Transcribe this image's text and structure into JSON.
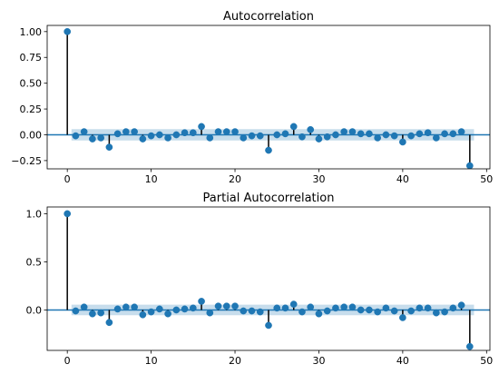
{
  "chart_data": [
    {
      "type": "stem",
      "title": "Autocorrelation",
      "xlabel": "",
      "ylabel": "",
      "xlim": [
        -2.4,
        50.4
      ],
      "ylim": [
        -0.33,
        1.06
      ],
      "x_ticks": [
        0,
        10,
        20,
        30,
        40,
        50
      ],
      "x_tick_labels": [
        "0",
        "10",
        "20",
        "30",
        "40",
        "50"
      ],
      "y_ticks": [
        -0.25,
        0.0,
        0.25,
        0.5,
        0.75,
        1.0
      ],
      "y_tick_labels": [
        "−0.25",
        "0.00",
        "0.25",
        "0.50",
        "0.75",
        "1.00"
      ],
      "confidence_band": 0.055,
      "grid": false,
      "colors": {
        "marker": "#1f77b4",
        "stem": "#000000",
        "band": "#1f77b4",
        "zero_line": "#1f77b4"
      },
      "lags": [
        0,
        1,
        2,
        3,
        4,
        5,
        6,
        7,
        8,
        9,
        10,
        11,
        12,
        13,
        14,
        15,
        16,
        17,
        18,
        19,
        20,
        21,
        22,
        23,
        24,
        25,
        26,
        27,
        28,
        29,
        30,
        31,
        32,
        33,
        34,
        35,
        36,
        37,
        38,
        39,
        40,
        41,
        42,
        43,
        44,
        45,
        46,
        47,
        48
      ],
      "values": [
        1.0,
        -0.01,
        0.03,
        -0.04,
        -0.03,
        -0.12,
        0.01,
        0.03,
        0.03,
        -0.04,
        -0.01,
        0.0,
        -0.03,
        0.0,
        0.02,
        0.02,
        0.08,
        -0.03,
        0.03,
        0.03,
        0.03,
        -0.03,
        -0.01,
        -0.01,
        -0.15,
        0.0,
        0.01,
        0.08,
        -0.02,
        0.05,
        -0.04,
        -0.02,
        0.0,
        0.03,
        0.03,
        0.01,
        0.01,
        -0.03,
        0.0,
        -0.01,
        -0.07,
        -0.01,
        0.01,
        0.02,
        -0.03,
        0.01,
        0.01,
        0.03,
        -0.3
      ]
    },
    {
      "type": "stem",
      "title": "Partial Autocorrelation",
      "xlabel": "",
      "ylabel": "",
      "xlim": [
        -2.4,
        50.4
      ],
      "ylim": [
        -0.42,
        1.07
      ],
      "x_ticks": [
        0,
        10,
        20,
        30,
        40,
        50
      ],
      "x_tick_labels": [
        "0",
        "10",
        "20",
        "30",
        "40",
        "50"
      ],
      "y_ticks": [
        0.0,
        0.5,
        1.0
      ],
      "y_tick_labels": [
        "0.0",
        "0.5",
        "1.0"
      ],
      "confidence_band": 0.055,
      "grid": false,
      "colors": {
        "marker": "#1f77b4",
        "stem": "#000000",
        "band": "#1f77b4",
        "zero_line": "#1f77b4"
      },
      "lags": [
        0,
        1,
        2,
        3,
        4,
        5,
        6,
        7,
        8,
        9,
        10,
        11,
        12,
        13,
        14,
        15,
        16,
        17,
        18,
        19,
        20,
        21,
        22,
        23,
        24,
        25,
        26,
        27,
        28,
        29,
        30,
        31,
        32,
        33,
        34,
        35,
        36,
        37,
        38,
        39,
        40,
        41,
        42,
        43,
        44,
        45,
        46,
        47,
        48
      ],
      "values": [
        1.0,
        -0.01,
        0.03,
        -0.04,
        -0.03,
        -0.13,
        0.01,
        0.03,
        0.03,
        -0.05,
        -0.02,
        0.01,
        -0.04,
        0.0,
        0.01,
        0.02,
        0.09,
        -0.03,
        0.04,
        0.04,
        0.04,
        -0.01,
        -0.01,
        -0.02,
        -0.16,
        0.02,
        0.02,
        0.06,
        -0.02,
        0.03,
        -0.04,
        -0.01,
        0.02,
        0.03,
        0.03,
        0.0,
        0.0,
        -0.02,
        0.02,
        -0.01,
        -0.08,
        -0.01,
        0.02,
        0.02,
        -0.03,
        -0.02,
        0.02,
        0.05,
        -0.38
      ]
    }
  ]
}
